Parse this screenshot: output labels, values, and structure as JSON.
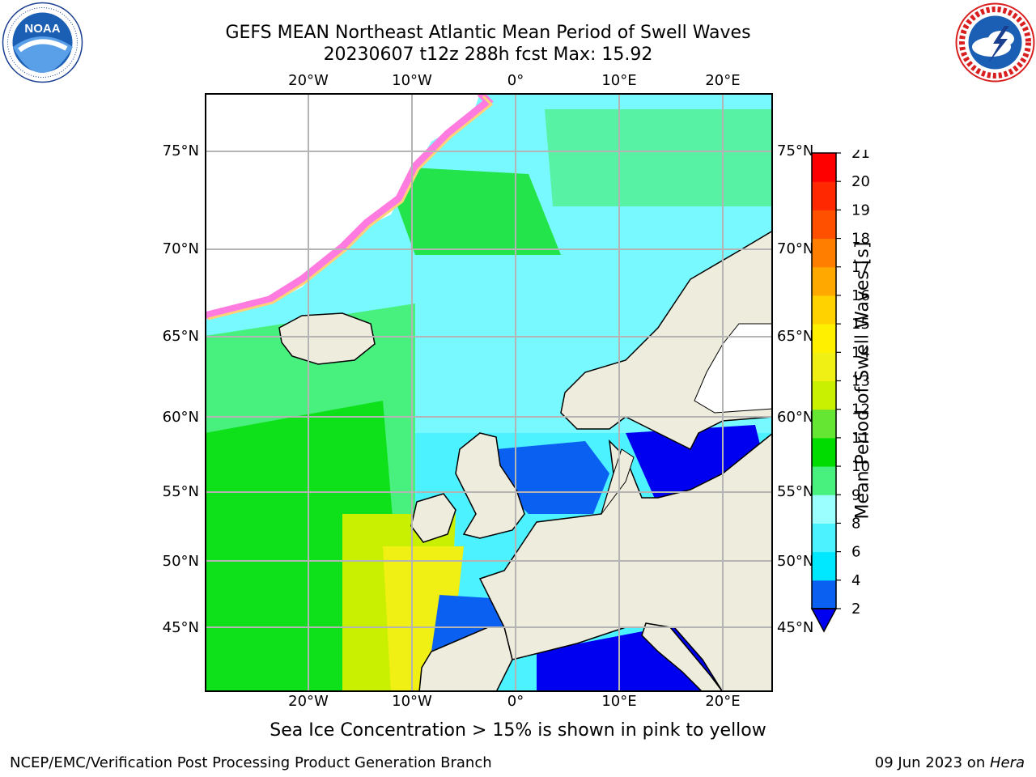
{
  "header": {
    "title_line1": "GEFS MEAN Northeast Atlantic Mean Period of Swell Waves",
    "title_line2": "20230607 t12z 288h fcst   Max: 15.92"
  },
  "logos": {
    "noaa_text": "NOAA",
    "noaa_ring_text": "NATIONAL OCEANIC AND ATMOSPHERIC ADMINISTRATION · U.S. DEPARTMENT OF COMMERCE",
    "nws_ring_text": "NATIONAL WEATHER SERVICE"
  },
  "map": {
    "lon_labels": [
      "20°W",
      "10°W",
      "0°",
      "10°E",
      "20°E"
    ],
    "lat_labels": [
      "75°N",
      "70°N",
      "65°N",
      "60°N",
      "55°N",
      "50°N",
      "45°N"
    ],
    "colors": {
      "land": "#eeecdd",
      "grid": "#b4b4b4",
      "ice": "#ffffff"
    }
  },
  "colorbar": {
    "label": "Mean Period of Swell Waves [s]",
    "ticks": [
      "2",
      "4",
      "6",
      "8",
      "9",
      "10",
      "11",
      "12",
      "13",
      "14",
      "15",
      "16",
      "17",
      "18",
      "19",
      "20",
      "21"
    ],
    "colors": [
      "#0a60f0",
      "#00e8ff",
      "#4cf2ff",
      "#9cffff",
      "#48f07e",
      "#00dc00",
      "#64e632",
      "#c8f000",
      "#f0f014",
      "#fff000",
      "#ffd200",
      "#ffa800",
      "#ff7e00",
      "#ff5000",
      "#ff2800",
      "#ff0000"
    ],
    "under_color": "#0000f0"
  },
  "notes": {
    "ice": "Sea Ice Concentration > 15% is shown in pink to yellow"
  },
  "footer": {
    "left": "NCEP/EMC/Verification Post Processing Product Generation Branch",
    "date": "09 Jun 2023 on ",
    "machine": "Hera"
  }
}
